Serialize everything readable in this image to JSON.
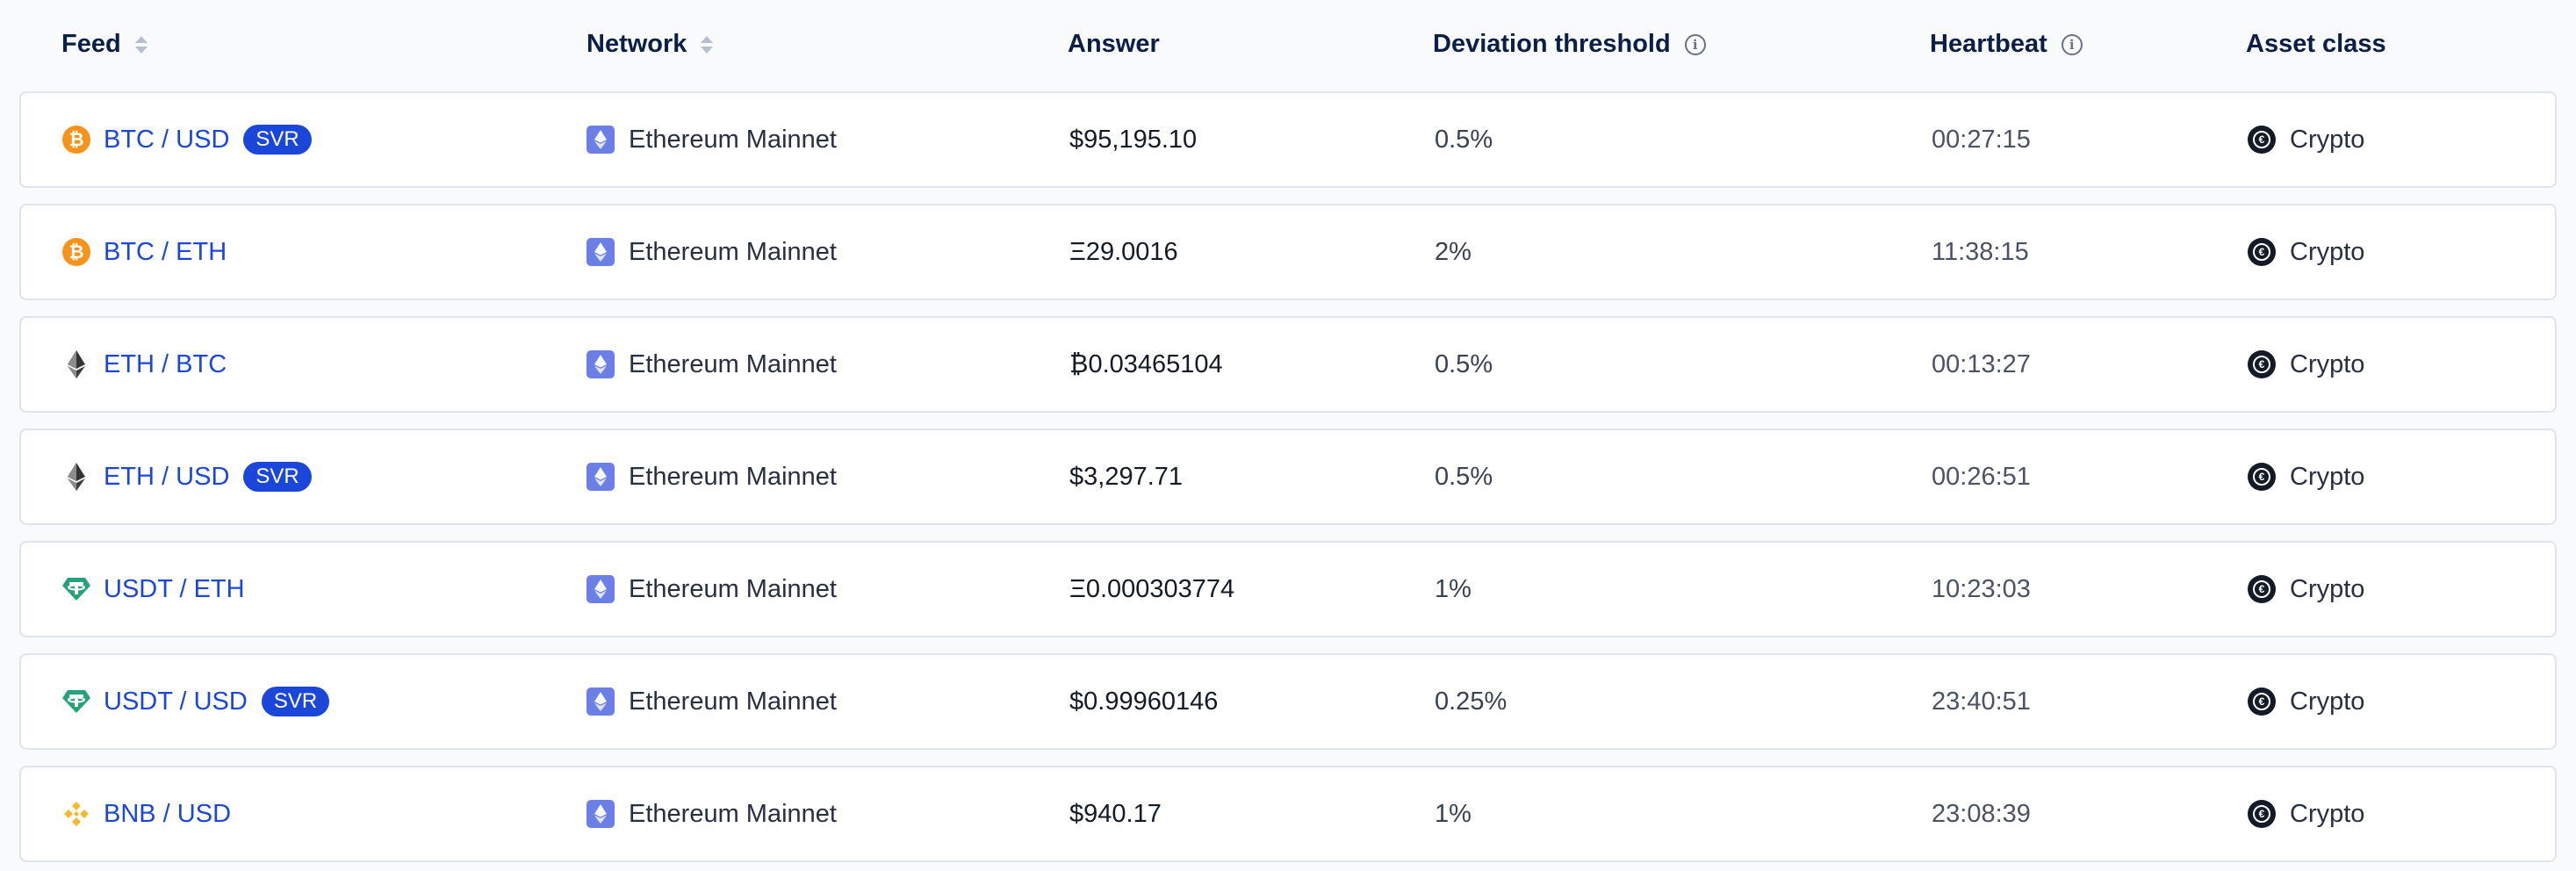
{
  "headers": {
    "feed": "Feed",
    "network": "Network",
    "answer": "Answer",
    "deviation": "Deviation threshold",
    "heartbeat": "Heartbeat",
    "asset_class": "Asset class"
  },
  "badge_label": "SVR",
  "colors": {
    "link": "#1a47d9",
    "badge_bg": "#1a47d9",
    "btc": "#f7931a",
    "usdt": "#26a17b",
    "bnb": "#f3ba2f",
    "eth_network": "#6c7fe6"
  },
  "rows": [
    {
      "icon": "btc-icon",
      "feed": "BTC / USD",
      "svr": true,
      "network": "Ethereum Mainnet",
      "answer": "$95,195.10",
      "deviation": "0.5%",
      "heartbeat": "00:27:15",
      "asset_class": "Crypto"
    },
    {
      "icon": "btc-icon",
      "feed": "BTC / ETH",
      "svr": false,
      "network": "Ethereum Mainnet",
      "answer": "Ξ29.0016",
      "deviation": "2%",
      "heartbeat": "11:38:15",
      "asset_class": "Crypto"
    },
    {
      "icon": "eth-icon",
      "feed": "ETH / BTC",
      "svr": false,
      "network": "Ethereum Mainnet",
      "answer": "₿0.03465104",
      "deviation": "0.5%",
      "heartbeat": "00:13:27",
      "asset_class": "Crypto"
    },
    {
      "icon": "eth-icon",
      "feed": "ETH / USD",
      "svr": true,
      "network": "Ethereum Mainnet",
      "answer": "$3,297.71",
      "deviation": "0.5%",
      "heartbeat": "00:26:51",
      "asset_class": "Crypto"
    },
    {
      "icon": "usdt-icon",
      "feed": "USDT / ETH",
      "svr": false,
      "network": "Ethereum Mainnet",
      "answer": "Ξ0.000303774",
      "deviation": "1%",
      "heartbeat": "10:23:03",
      "asset_class": "Crypto"
    },
    {
      "icon": "usdt-icon",
      "feed": "USDT / USD",
      "svr": true,
      "network": "Ethereum Mainnet",
      "answer": "$0.99960146",
      "deviation": "0.25%",
      "heartbeat": "23:40:51",
      "asset_class": "Crypto"
    },
    {
      "icon": "bnb-icon",
      "feed": "BNB / USD",
      "svr": false,
      "network": "Ethereum Mainnet",
      "answer": "$940.17",
      "deviation": "1%",
      "heartbeat": "23:08:39",
      "asset_class": "Crypto"
    }
  ]
}
